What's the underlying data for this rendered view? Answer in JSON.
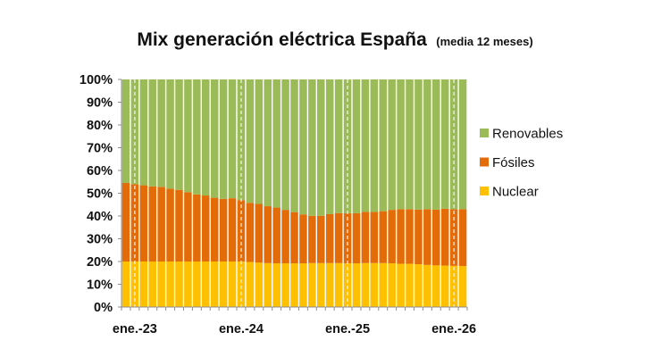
{
  "chart_data": {
    "type": "bar",
    "stacked": true,
    "title": "Mix generación eléctrica España",
    "subtitle": "(media 12 meses)",
    "xlabel": "",
    "ylabel": "",
    "ylim": [
      0,
      100
    ],
    "y_ticks": [
      "0%",
      "10%",
      "20%",
      "30%",
      "40%",
      "50%",
      "60%",
      "70%",
      "80%",
      "90%",
      "100%"
    ],
    "x_tick_labels": [
      {
        "label": "ene.-23",
        "category": "2023-01"
      },
      {
        "label": "ene.-24",
        "category": "2024-01"
      },
      {
        "label": "ene.-25",
        "category": "2025-01"
      },
      {
        "label": "ene.-26",
        "category": "2026-01"
      }
    ],
    "categories": [
      "2022-12",
      "2023-01",
      "2023-02",
      "2023-03",
      "2023-04",
      "2023-05",
      "2023-06",
      "2023-07",
      "2023-08",
      "2023-09",
      "2023-10",
      "2023-11",
      "2023-12",
      "2024-01",
      "2024-02",
      "2024-03",
      "2024-04",
      "2024-05",
      "2024-06",
      "2024-07",
      "2024-08",
      "2024-09",
      "2024-10",
      "2024-11",
      "2024-12",
      "2025-01",
      "2025-02",
      "2025-03",
      "2025-04",
      "2025-05",
      "2025-06",
      "2025-07",
      "2025-08",
      "2025-09",
      "2025-10",
      "2025-11",
      "2025-12",
      "2026-01",
      "2026-02"
    ],
    "legend": {
      "position": "right"
    },
    "grid": {
      "vertical_dashed_at": [
        "2023-01",
        "2024-01",
        "2025-01",
        "2026-01"
      ]
    },
    "series": [
      {
        "name": "Nuclear",
        "color": "#FFC000",
        "values": [
          20,
          20,
          20,
          20,
          20,
          20,
          20,
          20,
          20,
          20,
          20,
          20,
          20,
          20,
          19.8,
          19.5,
          19.3,
          19.2,
          19.2,
          19.2,
          19.2,
          19.3,
          19.3,
          19.3,
          19.3,
          19.2,
          19.2,
          19.3,
          19.3,
          19.3,
          19.2,
          19,
          19,
          18.8,
          18.5,
          18.3,
          18.2,
          18.1,
          18
        ]
      },
      {
        "name": "Fósiles",
        "color": "#E36C09",
        "values": [
          34.5,
          34,
          33.5,
          33,
          32.8,
          32,
          31.5,
          30.5,
          29.5,
          29,
          28,
          27.5,
          27.8,
          27,
          26,
          25.8,
          25,
          24.5,
          23.5,
          22.5,
          21.5,
          20.8,
          20.8,
          21.5,
          22,
          22,
          22,
          22.5,
          22.5,
          22.8,
          23.5,
          24,
          24,
          24,
          24.5,
          24.5,
          25,
          24.9,
          25
        ]
      },
      {
        "name": "Renovables",
        "color": "#9BBB59",
        "values": [
          45.5,
          46,
          46.5,
          47,
          47.2,
          48,
          48.5,
          49.5,
          50.5,
          51,
          52,
          52.5,
          52.2,
          53,
          54.2,
          54.7,
          55.7,
          56.3,
          57.3,
          58.3,
          59.3,
          59.9,
          59.9,
          59.2,
          58.7,
          58.8,
          58.8,
          58.2,
          58.2,
          57.9,
          57.3,
          57,
          57,
          57.2,
          57,
          57.2,
          56.8,
          57,
          57
        ]
      }
    ]
  }
}
